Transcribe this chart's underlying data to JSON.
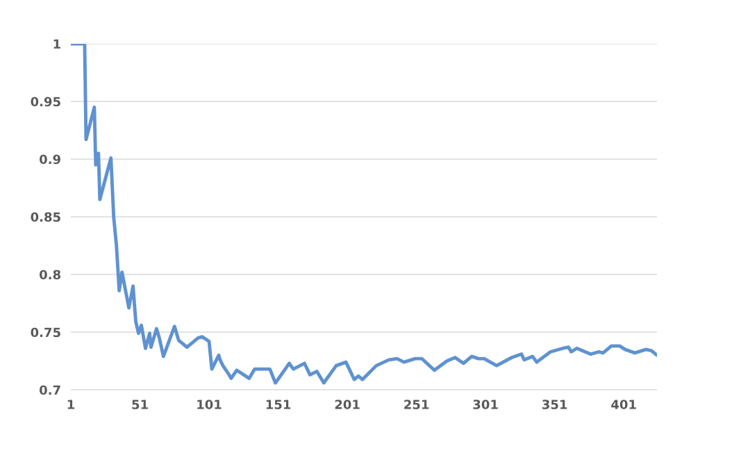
{
  "chart_data": {
    "type": "line",
    "grid": "y",
    "marker": "none",
    "line_style": "solid",
    "xlim": [
      1,
      425
    ],
    "xticks": [
      1,
      51,
      101,
      151,
      201,
      251,
      301,
      351,
      401
    ],
    "ylim": [
      0.7,
      1
    ],
    "yticks": [
      0.7,
      0.75,
      0.8,
      0.85,
      0.9,
      0.95,
      1
    ],
    "series": [
      {
        "color": "#5f92d0",
        "x": [
          1,
          11,
          12,
          18,
          19,
          21,
          22,
          30,
          32,
          34,
          36,
          38,
          43,
          46,
          48,
          50,
          52,
          55,
          58,
          59,
          63,
          65,
          68,
          76,
          79,
          85,
          93,
          96,
          101,
          103,
          108,
          109,
          111,
          115,
          117,
          121,
          130,
          134,
          145,
          149,
          159,
          162,
          170,
          174,
          179,
          184,
          193,
          200,
          206,
          209,
          212,
          222,
          231,
          237,
          242,
          250,
          255,
          264,
          273,
          279,
          285,
          291,
          296,
          300,
          309,
          320,
          327,
          329,
          335,
          338,
          348,
          357,
          361,
          363,
          367,
          377,
          383,
          386,
          392,
          398,
          402,
          409,
          417,
          421,
          425
        ],
        "values": [
          1.0,
          1.0,
          0.917,
          0.945,
          0.895,
          0.905,
          0.865,
          0.901,
          0.85,
          0.825,
          0.786,
          0.802,
          0.771,
          0.79,
          0.759,
          0.749,
          0.756,
          0.736,
          0.749,
          0.737,
          0.753,
          0.745,
          0.729,
          0.755,
          0.743,
          0.737,
          0.745,
          0.746,
          0.742,
          0.718,
          0.73,
          0.726,
          0.721,
          0.714,
          0.71,
          0.717,
          0.71,
          0.718,
          0.718,
          0.706,
          0.723,
          0.718,
          0.723,
          0.713,
          0.716,
          0.706,
          0.721,
          0.724,
          0.709,
          0.712,
          0.709,
          0.721,
          0.726,
          0.727,
          0.724,
          0.727,
          0.727,
          0.717,
          0.725,
          0.728,
          0.723,
          0.729,
          0.727,
          0.727,
          0.721,
          0.728,
          0.731,
          0.726,
          0.729,
          0.724,
          0.733,
          0.736,
          0.737,
          0.733,
          0.736,
          0.731,
          0.733,
          0.732,
          0.738,
          0.738,
          0.735,
          0.732,
          0.735,
          0.734,
          0.73
        ]
      }
    ]
  }
}
